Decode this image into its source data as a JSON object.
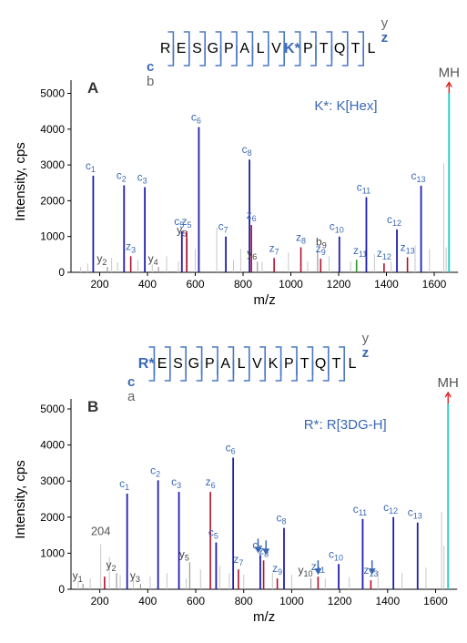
{
  "colors": {
    "c_ion": "#3a68b5",
    "z_ion": "#1a1a1a",
    "c_peak": "#1f1fb0",
    "z_peak": "#b0102a",
    "y_peak": "#9a9a9a",
    "other_peak": "#c7c7c7",
    "mh_peak": "#33cccc",
    "mh_arrow": "#e01010",
    "green_peak": "#2a9a2a",
    "bracket": "#4a78c8",
    "axis": "#000000"
  },
  "chart_data": [
    {
      "type": "bar",
      "panel_label": "A",
      "xlabel": "m/z",
      "ylabel": "Intensity, cps",
      "xlim": [
        80,
        1700
      ],
      "ylim": [
        0,
        5300
      ],
      "xticks": [
        200,
        400,
        600,
        800,
        1000,
        1200,
        1400,
        1600
      ],
      "yticks": [
        0,
        1000,
        2000,
        3000,
        4000,
        5000
      ],
      "annotation": "K*: K[Hex]",
      "sequence": [
        "R",
        "E",
        "S",
        "G",
        "P",
        "A",
        "L",
        "V",
        "K*",
        "P",
        "T",
        "Q",
        "T",
        "L"
      ],
      "modified_index": 8,
      "series_c_label": "c",
      "series_b_label": "b",
      "series_y_label": "y",
      "series_z_label": "z",
      "mh_label": "MH",
      "c_ions": [
        {
          "mz": 173,
          "intensity": 2700,
          "label": "c",
          "sub": "1"
        },
        {
          "mz": 302,
          "intensity": 2430,
          "label": "c",
          "sub": "2"
        },
        {
          "mz": 389,
          "intensity": 2380,
          "label": "c",
          "sub": "3"
        },
        {
          "mz": 544,
          "intensity": 1150,
          "label": "c",
          "sub": "5"
        },
        {
          "mz": 615,
          "intensity": 4060,
          "label": "c",
          "sub": "6"
        },
        {
          "mz": 728,
          "intensity": 1000,
          "label": "c",
          "sub": "7"
        },
        {
          "mz": 827,
          "intensity": 3150,
          "label": "c",
          "sub": "8"
        },
        {
          "mz": 1203,
          "intensity": 1000,
          "label": "c",
          "sub": "10"
        },
        {
          "mz": 1316,
          "intensity": 2100,
          "label": "c",
          "sub": "11"
        },
        {
          "mz": 1444,
          "intensity": 1200,
          "label": "c",
          "sub": "12"
        },
        {
          "mz": 1545,
          "intensity": 2420,
          "label": "c",
          "sub": "13"
        }
      ],
      "z_ions": [
        {
          "mz": 330,
          "intensity": 450,
          "label": "z",
          "sub": "3"
        },
        {
          "mz": 564,
          "intensity": 1150,
          "label": "z",
          "sub": "5"
        },
        {
          "mz": 835,
          "intensity": 1320,
          "label": "z",
          "sub": "6"
        },
        {
          "mz": 930,
          "intensity": 400,
          "label": "z",
          "sub": "7"
        },
        {
          "mz": 1042,
          "intensity": 700,
          "label": "z",
          "sub": "8"
        },
        {
          "mz": 1125,
          "intensity": 380,
          "label": "z",
          "sub": "9"
        },
        {
          "mz": 1390,
          "intensity": 250,
          "label": "z",
          "sub": "12"
        },
        {
          "mz": 1488,
          "intensity": 420,
          "label": "z",
          "sub": "13"
        }
      ],
      "y_ions": [
        {
          "mz": 232,
          "intensity": 150,
          "label": "y",
          "sub": "2"
        },
        {
          "mz": 446,
          "intensity": 150,
          "label": "y",
          "sub": "4"
        },
        {
          "mz": 566,
          "intensity": 950,
          "label": "y",
          "sub": "5"
        },
        {
          "mz": 860,
          "intensity": 300,
          "label": "y",
          "sub": "6"
        }
      ],
      "b_ions": [
        {
          "mz": 1112,
          "intensity": 600,
          "label": "b",
          "sub": "9"
        }
      ],
      "green_ions": [
        {
          "mz": 1275,
          "intensity": 350,
          "label": "z",
          "sub": "11"
        }
      ],
      "mh": {
        "mz": 1662,
        "intensity": 5000
      },
      "gray_peaks": [
        {
          "mz": 120,
          "intensity": 150
        },
        {
          "mz": 150,
          "intensity": 250
        },
        {
          "mz": 250,
          "intensity": 400
        },
        {
          "mz": 275,
          "intensity": 280
        },
        {
          "mz": 360,
          "intensity": 350
        },
        {
          "mz": 420,
          "intensity": 220
        },
        {
          "mz": 480,
          "intensity": 450
        },
        {
          "mz": 530,
          "intensity": 300
        },
        {
          "mz": 600,
          "intensity": 650
        },
        {
          "mz": 690,
          "intensity": 1250
        },
        {
          "mz": 760,
          "intensity": 350
        },
        {
          "mz": 790,
          "intensity": 650
        },
        {
          "mz": 880,
          "intensity": 300
        },
        {
          "mz": 990,
          "intensity": 550
        },
        {
          "mz": 1070,
          "intensity": 300
        },
        {
          "mz": 1160,
          "intensity": 450
        },
        {
          "mz": 1250,
          "intensity": 300
        },
        {
          "mz": 1350,
          "intensity": 500
        },
        {
          "mz": 1420,
          "intensity": 300
        },
        {
          "mz": 1520,
          "intensity": 750
        },
        {
          "mz": 1580,
          "intensity": 650
        },
        {
          "mz": 1640,
          "intensity": 3050
        },
        {
          "mz": 1650,
          "intensity": 700
        }
      ]
    },
    {
      "type": "bar",
      "panel_label": "B",
      "xlabel": "m/z",
      "ylabel": "Intensity, cps",
      "xlim": [
        80,
        1690
      ],
      "ylim": [
        0,
        5300
      ],
      "xticks": [
        200,
        400,
        600,
        800,
        1000,
        1200,
        1400,
        1600
      ],
      "yticks": [
        0,
        1000,
        2000,
        3000,
        4000,
        5000
      ],
      "annotation": "R*: R[3DG-H]",
      "sequence": [
        "R*",
        "E",
        "S",
        "G",
        "P",
        "A",
        "L",
        "V",
        "K",
        "P",
        "T",
        "Q",
        "T",
        "L"
      ],
      "modified_index": 0,
      "series_c_label": "c",
      "series_b_label": "a",
      "series_y_label": "y",
      "series_z_label": "z",
      "mh_label": "MH",
      "c_ions": [
        {
          "mz": 314,
          "intensity": 2650,
          "label": "c",
          "sub": "1"
        },
        {
          "mz": 443,
          "intensity": 3020,
          "label": "c",
          "sub": "2"
        },
        {
          "mz": 530,
          "intensity": 2700,
          "label": "c",
          "sub": "3"
        },
        {
          "mz": 685,
          "intensity": 1300,
          "label": "c",
          "sub": "5"
        },
        {
          "mz": 756,
          "intensity": 3650,
          "label": "c",
          "sub": "6"
        },
        {
          "mz": 869,
          "intensity": 950,
          "label": "c",
          "sub": "7"
        },
        {
          "mz": 968,
          "intensity": 1700,
          "label": "c",
          "sub": "8"
        },
        {
          "mz": 1196,
          "intensity": 700,
          "label": "c",
          "sub": "10"
        },
        {
          "mz": 1296,
          "intensity": 1950,
          "label": "c",
          "sub": "11"
        },
        {
          "mz": 1424,
          "intensity": 2000,
          "label": "c",
          "sub": "12"
        },
        {
          "mz": 1525,
          "intensity": 1850,
          "label": "c",
          "sub": "13"
        }
      ],
      "z_ions": [
        {
          "mz": 220,
          "intensity": 350,
          "label": "z",
          "sub": ""
        },
        {
          "mz": 661,
          "intensity": 2700,
          "label": "z",
          "sub": "6"
        },
        {
          "mz": 778,
          "intensity": 550,
          "label": "z",
          "sub": "7"
        },
        {
          "mz": 883,
          "intensity": 800,
          "label": "z",
          "sub": "8"
        },
        {
          "mz": 940,
          "intensity": 300,
          "label": "z",
          "sub": "9"
        },
        {
          "mz": 1110,
          "intensity": 350,
          "label": "z",
          "sub": "11"
        },
        {
          "mz": 1330,
          "intensity": 250,
          "label": "z",
          "sub": "13"
        }
      ],
      "y_ions": [
        {
          "mz": 130,
          "intensity": 150,
          "label": "y",
          "sub": "1"
        },
        {
          "mz": 270,
          "intensity": 450,
          "label": "y",
          "sub": "2"
        },
        {
          "mz": 370,
          "intensity": 150,
          "label": "y",
          "sub": "3"
        },
        {
          "mz": 575,
          "intensity": 750,
          "label": "y",
          "sub": "5"
        },
        {
          "mz": 1080,
          "intensity": 300,
          "label": "y",
          "sub": "10"
        }
      ],
      "b_ions": [],
      "green_ions": [],
      "labeled_gray": [
        {
          "mz": 204,
          "intensity": 1250,
          "label": "204"
        }
      ],
      "arrows": [
        {
          "target": "z7",
          "mz": 860,
          "intensity": 1050
        },
        {
          "target": "z8",
          "mz": 893,
          "intensity": 1000
        },
        {
          "target": "z11",
          "mz": 1110,
          "intensity": 450
        },
        {
          "target": "z13",
          "mz": 1335,
          "intensity": 450
        }
      ],
      "mh": {
        "mz": 1652,
        "intensity": 5150
      },
      "gray_peaks": [
        {
          "mz": 110,
          "intensity": 200
        },
        {
          "mz": 160,
          "intensity": 300
        },
        {
          "mz": 204,
          "intensity": 1250
        },
        {
          "mz": 240,
          "intensity": 900
        },
        {
          "mz": 285,
          "intensity": 400
        },
        {
          "mz": 340,
          "intensity": 250
        },
        {
          "mz": 410,
          "intensity": 350
        },
        {
          "mz": 480,
          "intensity": 450
        },
        {
          "mz": 560,
          "intensity": 300
        },
        {
          "mz": 620,
          "intensity": 550
        },
        {
          "mz": 700,
          "intensity": 650
        },
        {
          "mz": 740,
          "intensity": 450
        },
        {
          "mz": 800,
          "intensity": 400
        },
        {
          "mz": 920,
          "intensity": 450
        },
        {
          "mz": 1000,
          "intensity": 400
        },
        {
          "mz": 1140,
          "intensity": 300
        },
        {
          "mz": 1240,
          "intensity": 350
        },
        {
          "mz": 1360,
          "intensity": 500
        },
        {
          "mz": 1460,
          "intensity": 450
        },
        {
          "mz": 1560,
          "intensity": 600
        },
        {
          "mz": 1625,
          "intensity": 2150
        },
        {
          "mz": 1635,
          "intensity": 1200
        }
      ]
    }
  ]
}
